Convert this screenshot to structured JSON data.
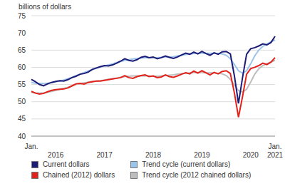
{
  "chart_data": {
    "type": "line",
    "y_label": "billions of dollars",
    "categories": [
      "Jan.",
      null,
      null,
      null,
      null,
      null,
      "2016",
      null,
      null,
      null,
      null,
      null,
      null,
      null,
      null,
      null,
      null,
      null,
      "2017",
      null,
      null,
      null,
      null,
      null,
      null,
      null,
      null,
      null,
      null,
      null,
      "2018",
      null,
      null,
      null,
      null,
      null,
      null,
      null,
      null,
      null,
      null,
      null,
      "2019",
      null,
      null,
      null,
      null,
      null,
      null,
      null,
      null,
      null,
      null,
      null,
      "2020",
      null,
      null,
      null,
      null,
      null,
      "Jan. 2021"
    ],
    "series": [
      {
        "name": "Current dollars",
        "color": "#1c1c78",
        "values": [
          56.5,
          55.8,
          55.0,
          54.6,
          55.2,
          55.6,
          55.9,
          56.1,
          56.0,
          56.4,
          57.0,
          57.4,
          58.0,
          58.2,
          58.6,
          59.4,
          59.8,
          60.2,
          60.5,
          60.4,
          60.7,
          61.2,
          61.8,
          62.5,
          62.0,
          61.8,
          62.2,
          62.9,
          63.2,
          62.8,
          63.0,
          62.5,
          62.8,
          63.3,
          62.9,
          62.6,
          63.0,
          63.6,
          64.1,
          63.8,
          64.4,
          63.9,
          64.6,
          64.0,
          63.5,
          64.2,
          63.8,
          64.5,
          64.6,
          63.9,
          57.5,
          49.5,
          57.0,
          63.8,
          65.4,
          65.7,
          66.2,
          66.8,
          66.5,
          67.2,
          69.0
        ]
      },
      {
        "name": "Chained (2012) dollars",
        "color": "#e3231b",
        "values": [
          53.0,
          52.5,
          52.2,
          52.4,
          52.9,
          53.3,
          53.5,
          53.6,
          53.7,
          54.0,
          54.6,
          55.2,
          55.3,
          55.1,
          55.6,
          55.8,
          56.0,
          56.0,
          56.2,
          56.4,
          56.6,
          56.8,
          57.0,
          57.6,
          57.0,
          56.8,
          57.3,
          57.6,
          57.8,
          57.3,
          57.5,
          57.0,
          57.2,
          57.8,
          57.3,
          57.1,
          57.5,
          58.0,
          58.4,
          58.1,
          58.9,
          58.3,
          59.0,
          58.4,
          57.8,
          58.5,
          58.1,
          58.8,
          59.0,
          58.2,
          52.5,
          45.5,
          51.5,
          58.0,
          59.6,
          60.0,
          60.5,
          61.2,
          60.8,
          61.5,
          62.8
        ]
      },
      {
        "name": "Trend cycle (current dollars)",
        "color": "#9cc3e8",
        "values": [
          55.6,
          55.4,
          55.3,
          55.3,
          55.4,
          55.6,
          55.8,
          56.0,
          56.3,
          56.7,
          57.1,
          57.6,
          58.0,
          58.5,
          58.9,
          59.3,
          59.7,
          60.1,
          60.4,
          60.7,
          61.0,
          61.4,
          61.7,
          62.0,
          62.2,
          62.4,
          62.6,
          62.7,
          62.8,
          62.8,
          62.8,
          62.8,
          62.9,
          63.0,
          63.0,
          63.1,
          63.3,
          63.5,
          63.7,
          63.8,
          64.0,
          64.1,
          64.1,
          64.1,
          64.1,
          64.1,
          64.0,
          63.9,
          63.5,
          62.5,
          60.8,
          59.0,
          58.3,
          59.0,
          61.0,
          63.3,
          65.0,
          66.1,
          66.8,
          67.4,
          67.9
        ]
      },
      {
        "name": "Trend cycle (2012 chained dollars)",
        "color": "#bdbdbd",
        "values": [
          52.8,
          52.6,
          52.5,
          52.6,
          52.8,
          53.0,
          53.3,
          53.6,
          53.9,
          54.2,
          54.6,
          55.0,
          55.3,
          55.5,
          55.7,
          55.9,
          56.0,
          56.1,
          56.3,
          56.5,
          56.7,
          56.9,
          57.1,
          57.3,
          57.4,
          57.5,
          57.5,
          57.5,
          57.5,
          57.5,
          57.4,
          57.4,
          57.5,
          57.6,
          57.7,
          57.8,
          58.0,
          58.2,
          58.3,
          58.4,
          58.5,
          58.5,
          58.5,
          58.4,
          58.4,
          58.4,
          58.3,
          58.1,
          57.6,
          56.5,
          54.8,
          53.2,
          52.8,
          53.6,
          55.7,
          58.0,
          59.6,
          60.5,
          61.1,
          61.5,
          62.0
        ]
      }
    ],
    "ylim": [
      40,
      75
    ],
    "yticks": [
      40,
      45,
      50,
      55,
      60,
      65,
      70,
      75
    ],
    "grid": true,
    "legend": "bottom"
  }
}
